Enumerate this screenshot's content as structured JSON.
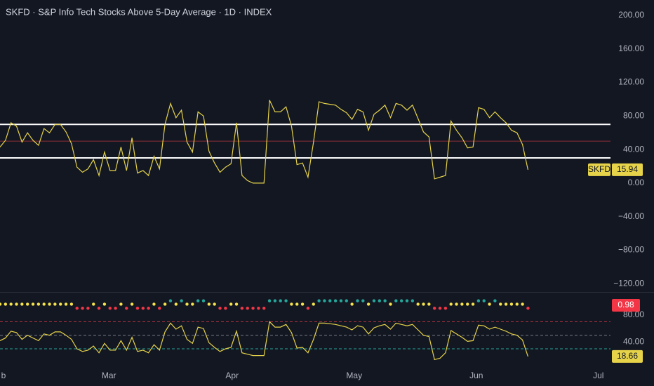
{
  "chart_data": {
    "type": "line",
    "title": "SKFD · S&P Info Tech Stocks Above 5-Day Average · 1D · INDEX",
    "x": [
      0,
      1,
      2,
      3,
      4,
      5,
      6,
      7,
      8,
      9,
      10,
      11,
      12,
      13,
      14,
      15,
      16,
      17,
      18,
      19,
      20,
      21,
      22,
      23,
      24,
      25,
      26,
      27,
      28,
      29,
      30,
      31,
      32,
      33,
      34,
      35,
      36,
      37,
      38,
      39,
      40,
      41,
      42,
      43,
      44,
      45,
      46,
      47,
      48,
      49,
      50,
      51,
      52,
      53,
      54,
      55,
      56,
      57,
      58,
      59,
      60,
      61,
      62,
      63,
      64,
      65,
      66,
      67,
      68,
      69,
      70,
      71,
      72,
      73,
      74,
      75,
      76,
      77,
      78,
      79,
      80,
      81,
      82,
      83,
      84,
      85,
      86,
      87,
      88,
      89,
      90,
      91,
      92,
      93,
      94,
      95,
      96
    ],
    "xlim": [
      0,
      111
    ],
    "xticks": [
      {
        "value": 0.64,
        "label": "b"
      },
      {
        "value": 19.8,
        "label": "Mar"
      },
      {
        "value": 42.2,
        "label": "Apr"
      },
      {
        "value": 64.4,
        "label": "May"
      },
      {
        "value": 86.6,
        "label": "Jun"
      },
      {
        "value": 108.8,
        "label": "Jul"
      }
    ],
    "series": [
      {
        "name": "SKFD",
        "color": "#e6d34a",
        "value_labels": "15.94",
        "values": [
          43,
          51,
          72,
          68,
          49,
          60,
          51,
          45,
          65,
          60,
          70,
          70,
          61,
          47,
          19,
          13,
          17,
          28,
          9,
          37,
          15,
          15,
          43,
          15,
          54,
          12,
          15,
          9,
          32,
          17,
          70,
          95,
          78,
          87,
          49,
          37,
          85,
          80,
          38,
          24,
          13,
          19,
          23,
          72,
          9,
          3,
          0,
          0,
          0,
          99,
          85,
          85,
          91,
          68,
          22,
          24,
          7,
          49,
          97,
          95,
          94,
          93,
          88,
          84,
          76,
          88,
          85,
          63,
          82,
          87,
          93,
          78,
          95,
          93,
          87,
          93,
          77,
          61,
          55,
          5,
          7,
          9,
          74,
          63,
          54,
          42,
          43,
          90,
          88,
          78,
          85,
          78,
          72,
          63,
          60,
          46,
          15.94
        ]
      }
    ],
    "ylim": [
      -129,
      218.4
    ],
    "yticks": [
      {
        "value": 200,
        "label": "200.00"
      },
      {
        "value": 160,
        "label": "160.00"
      },
      {
        "value": 120,
        "label": "120.00"
      },
      {
        "value": 80,
        "label": "80.00"
      },
      {
        "value": 40,
        "label": "40.00"
      },
      {
        "value": 0,
        "label": "0.00"
      },
      {
        "value": -40,
        "label": "−40.00"
      },
      {
        "value": -80,
        "label": "−80.00"
      },
      {
        "value": -120,
        "label": "−120.00"
      }
    ],
    "levels": [
      {
        "value": 70,
        "color": "#ffffff"
      },
      {
        "value": 30,
        "color": "#ffffff"
      },
      {
        "value": 50,
        "color": "#8b2f35"
      }
    ],
    "lower": {
      "ylim": [
        4,
        112
      ],
      "yticks": [
        {
          "value": 80,
          "label": "80.00"
        },
        {
          "value": 40,
          "label": "40.00"
        }
      ],
      "line": {
        "color": "#e6d34a",
        "value_labels": "18.66",
        "values": [
          42,
          46,
          56,
          54,
          44,
          50,
          46,
          42,
          52,
          50,
          55,
          55,
          50,
          44,
          30,
          26,
          28,
          34,
          24,
          38,
          28,
          28,
          42,
          28,
          47,
          26,
          28,
          24,
          36,
          28,
          55,
          68,
          59,
          64,
          44,
          38,
          62,
          60,
          39,
          32,
          26,
          30,
          32,
          56,
          24,
          22,
          20,
          20,
          20,
          70,
          62,
          62,
          66,
          54,
          31,
          32,
          24,
          44,
          68,
          68,
          67,
          66,
          64,
          62,
          58,
          64,
          62,
          52,
          61,
          64,
          66,
          59,
          68,
          66,
          64,
          66,
          58,
          50,
          48,
          14,
          16,
          24,
          57,
          52,
          47,
          41,
          42,
          65,
          64,
          59,
          62,
          59,
          56,
          52,
          50,
          43,
          18.66
        ]
      },
      "levels": [
        {
          "value": 70,
          "color": "#b2323f"
        },
        {
          "value": 50,
          "color": "#787b86"
        },
        {
          "value": 30,
          "color": "#26a69a"
        }
      ],
      "dots": {
        "label": "0.98",
        "label_color": "#f23645",
        "colors": [
          {
            "min": 100,
            "color": "#26a69a"
          },
          {
            "min": 93,
            "color": "#f7e34b"
          },
          {
            "min": 0,
            "color": "#f23645"
          }
        ],
        "values": [
          96,
          96,
          96,
          96,
          96,
          96,
          96,
          96,
          96,
          96,
          96,
          96,
          96,
          96,
          90,
          90,
          90,
          96,
          90,
          96,
          90,
          90,
          96,
          90,
          96,
          90,
          90,
          90,
          96,
          90,
          96,
          101,
          96,
          101,
          96,
          96,
          101,
          101,
          96,
          96,
          90,
          90,
          96,
          96,
          90,
          90,
          90,
          90,
          90,
          101,
          101,
          101,
          101,
          96,
          96,
          96,
          90,
          96,
          101,
          101,
          101,
          101,
          101,
          101,
          96,
          101,
          101,
          96,
          101,
          101,
          101,
          96,
          101,
          101,
          101,
          101,
          96,
          96,
          96,
          90,
          90,
          90,
          96,
          96,
          96,
          96,
          96,
          101,
          101,
          96,
          101,
          96,
          96,
          96,
          96,
          96,
          90
        ]
      }
    }
  }
}
